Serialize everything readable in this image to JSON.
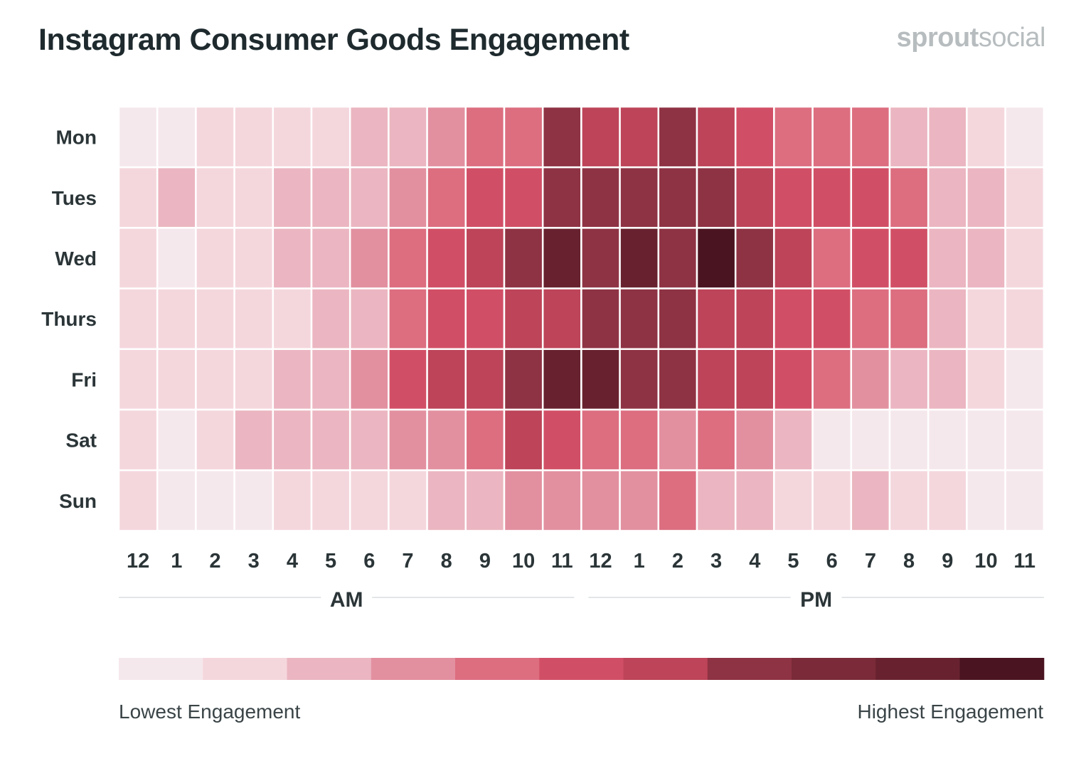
{
  "title": "Instagram Consumer Goods Engagement",
  "brand": {
    "part1": "sprout",
    "part2": "social"
  },
  "chart_data": {
    "type": "heatmap",
    "title": "Instagram Consumer Goods Engagement",
    "rows": [
      "Mon",
      "Tues",
      "Wed",
      "Thurs",
      "Fri",
      "Sat",
      "Sun"
    ],
    "columns": [
      "12",
      "1",
      "2",
      "3",
      "4",
      "5",
      "6",
      "7",
      "8",
      "9",
      "10",
      "11",
      "12",
      "1",
      "2",
      "3",
      "4",
      "5",
      "6",
      "7",
      "8",
      "9",
      "10",
      "11"
    ],
    "periods": [
      {
        "label": "AM",
        "start_col": 0,
        "end_col": 11
      },
      {
        "label": "PM",
        "start_col": 12,
        "end_col": 23
      }
    ],
    "scale_min": 0,
    "scale_max": 10,
    "values": [
      [
        0,
        0,
        1,
        1,
        1,
        1,
        2,
        2,
        3,
        4,
        4,
        7,
        6,
        6,
        7,
        6,
        5,
        4,
        4,
        4,
        2,
        2,
        1,
        0
      ],
      [
        1,
        2,
        1,
        1,
        2,
        2,
        2,
        3,
        4,
        5,
        5,
        7,
        7,
        7,
        7,
        7,
        6,
        5,
        5,
        5,
        4,
        2,
        2,
        1
      ],
      [
        1,
        0,
        1,
        1,
        2,
        2,
        3,
        4,
        5,
        6,
        7,
        9,
        7,
        9,
        7,
        10,
        7,
        6,
        4,
        5,
        5,
        2,
        2,
        1
      ],
      [
        1,
        1,
        1,
        1,
        1,
        2,
        2,
        4,
        5,
        5,
        6,
        6,
        7,
        7,
        7,
        6,
        6,
        5,
        5,
        4,
        4,
        2,
        1,
        1
      ],
      [
        1,
        1,
        1,
        1,
        2,
        2,
        3,
        5,
        6,
        6,
        7,
        9,
        9,
        7,
        7,
        6,
        6,
        5,
        4,
        3,
        2,
        2,
        1,
        0
      ],
      [
        1,
        0,
        1,
        2,
        2,
        2,
        2,
        3,
        3,
        4,
        6,
        5,
        4,
        4,
        3,
        4,
        3,
        2,
        0,
        0,
        0,
        0,
        0,
        0
      ],
      [
        1,
        0,
        0,
        0,
        1,
        1,
        1,
        1,
        2,
        2,
        3,
        3,
        3,
        3,
        4,
        2,
        2,
        1,
        1,
        2,
        1,
        1,
        0,
        0
      ]
    ],
    "color_scale": [
      "#f5e8ec",
      "#f4d7dd",
      "#ebb6c1",
      "#e290a0",
      "#dc6e80",
      "#d14f66",
      "#bd4459",
      "#8e3344",
      "#7a2a38",
      "#68222f",
      "#4a1420"
    ],
    "legend": {
      "low_label": "Lowest Engagement",
      "high_label": "Highest Engagement"
    }
  }
}
